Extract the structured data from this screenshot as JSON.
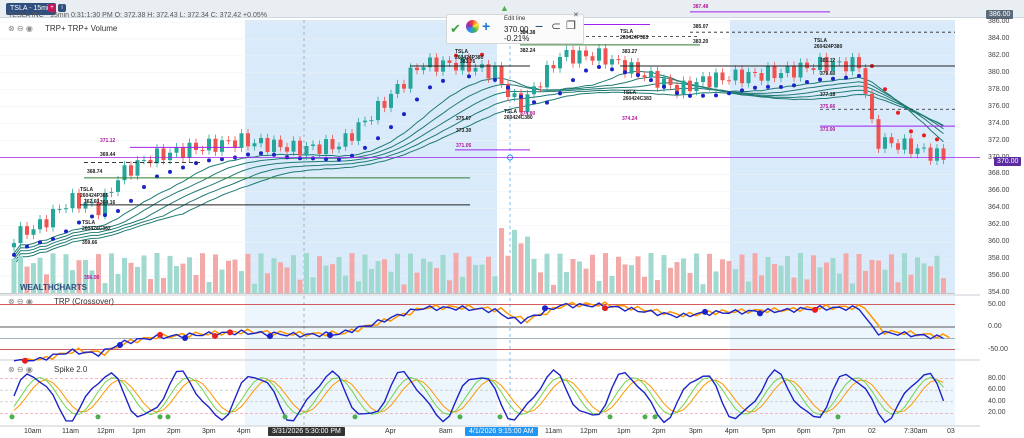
{
  "window": {
    "tab_label": "TSLA - 15min",
    "ohlc_line": "TESLA INC - 15min  0:31:1:30 PM  O: 372.38  H: 372.43  L: 372.34  C: 372.42  +0.05%",
    "legend": "TRP+  TRP+  Volume",
    "top_right_price": "386.00"
  },
  "toolbar": {
    "title": "Edit line",
    "value": "370.00",
    "pct": "-0.21%"
  },
  "price_axis": {
    "ticks": [
      "386.00",
      "384.00",
      "382.00",
      "380.00",
      "378.00",
      "376.00",
      "374.00",
      "372.00",
      "370.00",
      "368.00",
      "366.00",
      "364.00",
      "362.00",
      "360.00",
      "358.00",
      "356.00",
      "354.00"
    ],
    "current": "370.00"
  },
  "chart_annotations": {
    "watermark": "WEALTHCHARTS",
    "labels": [
      "TSLA 260424P365",
      "TSLA 260424C362",
      "TSLA 260424P380",
      "TSLA 260424C380",
      "TSLA 260424P383",
      "TSLA 260424C383",
      "TSLA 260424P380",
      "371.12",
      "369.44",
      "368.74",
      "362.60",
      "359.66",
      "364.16",
      "356.00",
      "383.76",
      "375.67",
      "373.30",
      "371.05",
      "384.38",
      "382.24",
      "374.80",
      "383.27",
      "374.24",
      "387.48",
      "385.07",
      "383.20",
      "377.18",
      "381.12",
      "379.60",
      "375.66",
      "373.00"
    ]
  },
  "indicator_panes": [
    {
      "name": "TRP (Crossover)",
      "ticks": [
        "50.00",
        "0.00",
        "-50.00"
      ]
    },
    {
      "name": "Spike 2.0",
      "ticks": [
        "80.00",
        "60.00",
        "40.00",
        "20.00"
      ]
    }
  ],
  "x_axis": {
    "labels": [
      "10am",
      "11am",
      "12pm",
      "1pm",
      "2pm",
      "3pm",
      "4pm",
      "Apr",
      "8am",
      "11am",
      "12pm",
      "1pm",
      "2pm",
      "3pm",
      "4pm",
      "5pm",
      "6pm",
      "7pm",
      "02",
      "7:30am",
      "03"
    ],
    "crosshair_left": "3/31/2026 5:30:00 PM",
    "crosshair_right": "4/1/2026 9:15:00 AM"
  },
  "colors": {
    "bull": "#26a69a",
    "bear": "#ef5350",
    "ribbon": "#1f7a73",
    "session_shade": "#d9ebfb",
    "trp_blue": "#1a23c8",
    "trp_orange": "#ff9800",
    "trp_red": "#e81e1e",
    "current_line": "#a020f0"
  }
}
